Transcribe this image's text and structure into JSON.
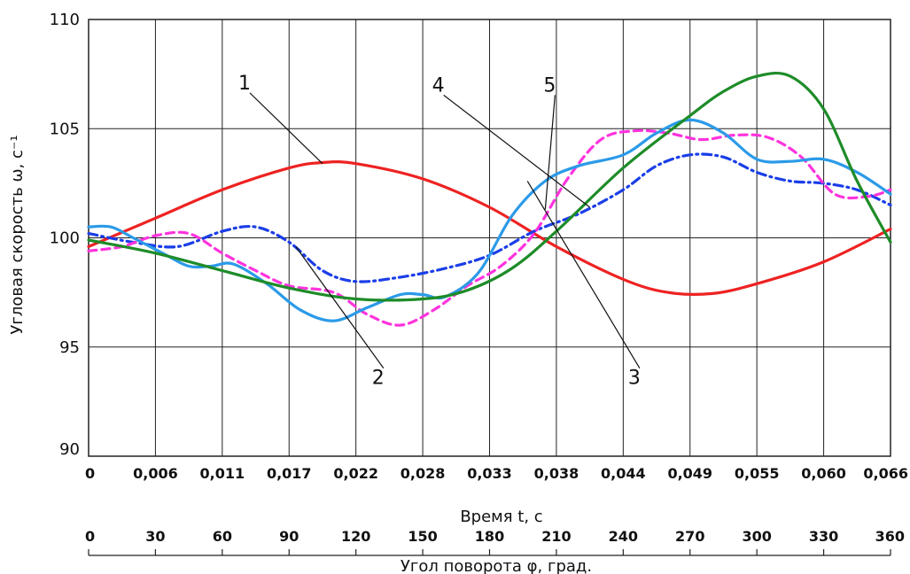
{
  "chart_data": {
    "type": "line",
    "ylabel": "Угловая скорость ω, с⁻¹",
    "xlabel": "Время t, с",
    "x2label": "Угол поворота φ, град.",
    "ylim": [
      90,
      110
    ],
    "yticks": [
      "90",
      "95",
      "100",
      "105",
      "110"
    ],
    "xlim": [
      0,
      360
    ],
    "xticks_top": [
      "0",
      "0,006",
      "0,011",
      "0,017",
      "0,022",
      "0,028",
      "0,033",
      "0,038",
      "0,044",
      "0,049",
      "0,055",
      "0,060",
      "0,066"
    ],
    "xticks_bottom": [
      "0",
      "30",
      "60",
      "90",
      "120",
      "150",
      "180",
      "210",
      "240",
      "270",
      "300",
      "330",
      "360"
    ],
    "grid": true,
    "series": [
      {
        "name": "1",
        "color": "#ee2222",
        "dash": "solid",
        "x": [
          0,
          30,
          60,
          90,
          105,
          120,
          150,
          180,
          210,
          240,
          260,
          280,
          300,
          330,
          360
        ],
        "y": [
          99.6,
          100.9,
          102.2,
          103.2,
          103.45,
          103.4,
          102.7,
          101.4,
          99.6,
          98.1,
          97.5,
          97.45,
          97.9,
          98.9,
          100.4
        ]
      },
      {
        "name": "2",
        "color": "#1a3ee8",
        "dash": "dashdot",
        "x": [
          0,
          20,
          40,
          60,
          75,
          90,
          105,
          120,
          140,
          160,
          180,
          200,
          220,
          240,
          255,
          270,
          285,
          300,
          315,
          330,
          345,
          360
        ],
        "y": [
          100.2,
          99.8,
          99.6,
          100.3,
          100.5,
          99.8,
          98.5,
          98.0,
          98.2,
          98.6,
          99.2,
          100.3,
          101.1,
          102.2,
          103.3,
          103.8,
          103.7,
          103.0,
          102.6,
          102.5,
          102.2,
          101.5
        ]
      },
      {
        "name": "3",
        "color": "#1e8c28",
        "dash": "solid",
        "x": [
          0,
          30,
          60,
          90,
          120,
          150,
          170,
          190,
          210,
          240,
          270,
          285,
          300,
          315,
          330,
          345,
          360
        ],
        "y": [
          99.9,
          99.3,
          98.5,
          97.7,
          97.2,
          97.2,
          97.6,
          98.6,
          100.3,
          103.2,
          105.6,
          106.7,
          107.4,
          107.4,
          105.9,
          102.6,
          99.8
        ]
      },
      {
        "name": "4",
        "color": "#2b9ae8",
        "dash": "solid",
        "x": [
          0,
          10,
          20,
          35,
          45,
          55,
          65,
          80,
          95,
          110,
          125,
          140,
          150,
          160,
          175,
          190,
          205,
          220,
          240,
          255,
          270,
          285,
          300,
          315,
          330,
          345,
          360
        ],
        "y": [
          100.5,
          100.5,
          100.0,
          99.2,
          98.7,
          98.7,
          98.8,
          97.9,
          96.7,
          96.2,
          96.8,
          97.4,
          97.4,
          97.3,
          98.4,
          101.0,
          102.6,
          103.3,
          103.8,
          104.8,
          105.4,
          104.8,
          103.6,
          103.5,
          103.6,
          103.0,
          102.0
        ]
      },
      {
        "name": "5",
        "color": "#ff33dd",
        "dash": "dashed",
        "x": [
          0,
          15,
          30,
          45,
          60,
          75,
          90,
          110,
          125,
          140,
          155,
          170,
          185,
          200,
          215,
          230,
          245,
          260,
          275,
          290,
          305,
          320,
          335,
          350,
          360
        ],
        "y": [
          99.4,
          99.6,
          100.1,
          100.2,
          99.3,
          98.5,
          97.8,
          97.5,
          96.5,
          96.0,
          96.7,
          97.8,
          98.7,
          100.2,
          102.7,
          104.5,
          104.9,
          104.8,
          104.5,
          104.7,
          104.6,
          103.7,
          102.0,
          101.9,
          102.2
        ]
      }
    ],
    "annotations": [
      {
        "text": "1",
        "label_x": 70,
        "label_y": 106.8,
        "to_x": 105,
        "to_y": 103.4
      },
      {
        "text": "2",
        "label_x": 130,
        "label_y": 93.3,
        "to_x": 93,
        "to_y": 99.6
      },
      {
        "text": "3",
        "label_x": 245,
        "label_y": 93.3,
        "to_x": 197,
        "to_y": 102.6
      },
      {
        "text": "4",
        "label_x": 157,
        "label_y": 106.7,
        "to_x": 225,
        "to_y": 101.4
      },
      {
        "text": "5",
        "label_x": 207,
        "label_y": 106.7,
        "to_x": 205,
        "to_y": 101.3
      }
    ]
  }
}
